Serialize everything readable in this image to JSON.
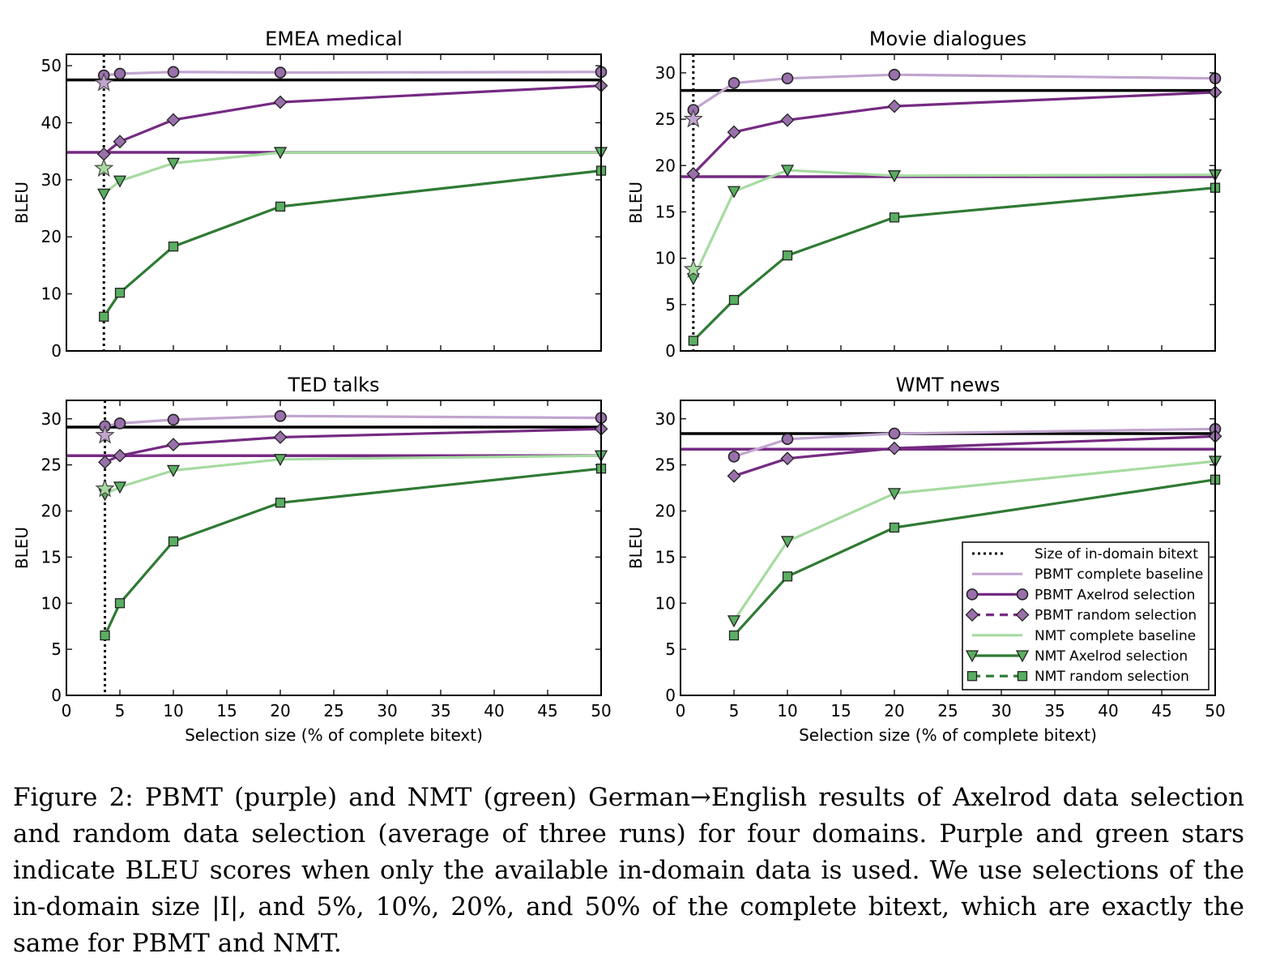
{
  "chart_data": [
    {
      "type": "line",
      "title": "EMEA medical",
      "xlabel": "",
      "ylabel": "BLEU",
      "xlim": [
        0,
        50
      ],
      "ylim": [
        0,
        52
      ],
      "yticks": [
        0,
        10,
        20,
        30,
        40,
        50
      ],
      "xticks": [],
      "in_domain_size": 3.5,
      "baselines": [
        {
          "ref": 0,
          "value": 47.5
        },
        {
          "ref": 3,
          "value": 34.8
        }
      ],
      "series": [
        {
          "ref": 1,
          "x": [
            3.5,
            5,
            10,
            20,
            50
          ],
          "y": [
            48.3,
            48.6,
            48.9,
            48.8,
            48.9
          ]
        },
        {
          "ref": 2,
          "x": [
            3.5,
            5,
            10,
            20,
            50
          ],
          "y": [
            34.5,
            36.7,
            40.5,
            43.6,
            46.5
          ]
        },
        {
          "ref": 4,
          "x": [
            3.5,
            5,
            10,
            20,
            50
          ],
          "y": [
            27.5,
            29.8,
            32.9,
            34.8,
            34.8
          ]
        },
        {
          "ref": 5,
          "x": [
            3.5,
            5,
            10,
            20,
            50
          ],
          "y": [
            6.0,
            10.2,
            18.3,
            25.3,
            31.6
          ]
        }
      ],
      "stars": [
        {
          "color": "#c2a5cf",
          "x": 3.5,
          "y": 47.0
        },
        {
          "color": "#a6dba0",
          "x": 3.5,
          "y": 32.0
        }
      ]
    },
    {
      "type": "line",
      "title": "Movie dialogues",
      "xlabel": "",
      "ylabel": "BLEU",
      "xlim": [
        0,
        50
      ],
      "ylim": [
        0,
        32
      ],
      "yticks": [
        0,
        5,
        10,
        15,
        20,
        25,
        30
      ],
      "xticks": [],
      "in_domain_size": 1.2,
      "baselines": [
        {
          "ref": 0,
          "value": 28.1
        },
        {
          "ref": 3,
          "value": 18.8
        }
      ],
      "series": [
        {
          "ref": 1,
          "x": [
            1.2,
            5,
            10,
            20,
            50
          ],
          "y": [
            26.0,
            28.9,
            29.4,
            29.8,
            29.4
          ]
        },
        {
          "ref": 2,
          "x": [
            1.2,
            5,
            10,
            20,
            50
          ],
          "y": [
            19.1,
            23.6,
            24.9,
            26.4,
            27.9
          ]
        },
        {
          "ref": 4,
          "x": [
            1.2,
            5,
            10,
            20,
            50
          ],
          "y": [
            7.8,
            17.2,
            19.5,
            18.9,
            19.0
          ]
        },
        {
          "ref": 5,
          "x": [
            1.2,
            5,
            10,
            20,
            50
          ],
          "y": [
            1.1,
            5.5,
            10.3,
            14.4,
            17.6
          ]
        }
      ],
      "stars": [
        {
          "color": "#c2a5cf",
          "x": 1.2,
          "y": 25.0
        },
        {
          "color": "#a6dba0",
          "x": 1.2,
          "y": 8.8
        }
      ]
    },
    {
      "type": "line",
      "title": "TED talks",
      "xlabel": "Selection size (% of complete bitext)",
      "ylabel": "BLEU",
      "xlim": [
        0,
        50
      ],
      "ylim": [
        0,
        32
      ],
      "yticks": [
        0,
        5,
        10,
        15,
        20,
        25,
        30
      ],
      "xticks": [
        0,
        5,
        10,
        15,
        20,
        25,
        30,
        35,
        40,
        45,
        50
      ],
      "in_domain_size": 3.6,
      "baselines": [
        {
          "ref": 0,
          "value": 29.1
        },
        {
          "ref": 3,
          "value": 26.0
        }
      ],
      "series": [
        {
          "ref": 1,
          "x": [
            3.6,
            5,
            10,
            20,
            50
          ],
          "y": [
            29.2,
            29.5,
            29.9,
            30.3,
            30.1
          ]
        },
        {
          "ref": 2,
          "x": [
            3.6,
            5,
            10,
            20,
            50
          ],
          "y": [
            25.3,
            26.0,
            27.2,
            28.0,
            28.9
          ]
        },
        {
          "ref": 4,
          "x": [
            3.6,
            5,
            10,
            20,
            50
          ],
          "y": [
            21.8,
            22.6,
            24.4,
            25.6,
            26.0
          ]
        },
        {
          "ref": 5,
          "x": [
            3.6,
            5,
            10,
            20,
            50
          ],
          "y": [
            6.5,
            10.0,
            16.7,
            20.9,
            24.6
          ]
        }
      ],
      "stars": [
        {
          "color": "#c2a5cf",
          "x": 3.6,
          "y": 28.2
        },
        {
          "color": "#a6dba0",
          "x": 3.6,
          "y": 22.4
        }
      ]
    },
    {
      "type": "line",
      "title": "WMT news",
      "xlabel": "Selection size (% of complete bitext)",
      "ylabel": "BLEU",
      "xlim": [
        0,
        50
      ],
      "ylim": [
        0,
        32
      ],
      "yticks": [
        0,
        5,
        10,
        15,
        20,
        25,
        30
      ],
      "xticks": [
        0,
        5,
        10,
        15,
        20,
        25,
        30,
        35,
        40,
        45,
        50
      ],
      "in_domain_size": null,
      "baselines": [
        {
          "ref": 0,
          "value": 28.4
        },
        {
          "ref": 3,
          "value": 26.7
        }
      ],
      "series": [
        {
          "ref": 1,
          "x": [
            5,
            10,
            20,
            50
          ],
          "y": [
            25.9,
            27.8,
            28.4,
            28.9
          ]
        },
        {
          "ref": 2,
          "x": [
            5,
            10,
            20,
            50
          ],
          "y": [
            23.8,
            25.7,
            26.8,
            28.1
          ]
        },
        {
          "ref": 4,
          "x": [
            5,
            10,
            20,
            50
          ],
          "y": [
            8.1,
            16.7,
            21.9,
            25.4
          ]
        },
        {
          "ref": 5,
          "x": [
            5,
            10,
            20,
            50
          ],
          "y": [
            6.5,
            12.9,
            18.2,
            23.4
          ]
        }
      ],
      "stars": [],
      "legend": "lower-right"
    }
  ],
  "legend": [
    {
      "name": "Size of in-domain bitext",
      "color": "#000000",
      "style": "dotted",
      "marker": "none"
    },
    {
      "name": "PBMT complete baseline",
      "color": "#c2a5cf",
      "style": "solid",
      "marker": "none"
    },
    {
      "name": "PBMT Axelrod selection",
      "color": "#762a83",
      "style": "solid",
      "marker": "circle"
    },
    {
      "name": "PBMT random selection",
      "color": "#762a83",
      "style": "dashed",
      "marker": "diamond"
    },
    {
      "name": "NMT complete baseline",
      "color": "#a6dba0",
      "style": "solid",
      "marker": "none"
    },
    {
      "name": "NMT Axelrod selection",
      "color": "#2f7a34",
      "style": "solid",
      "marker": "triangle-down"
    },
    {
      "name": "NMT random selection",
      "color": "#2f7a34",
      "style": "dashed",
      "marker": "square"
    }
  ],
  "marker_fills": {
    "purple": "#9970ab",
    "green": "#5aae61"
  },
  "caption": "Figure 2: PBMT (purple) and NMT (green) German→English results of Axelrod data selection and random data selection (average of three runs) for four domains. Purple and green stars indicate BLEU scores when only the available in-domain data is used. We use selections of the in-domain size |I|, and 5%, 10%, 20%, and 50% of the complete bitext, which are exactly the same for PBMT and NMT."
}
